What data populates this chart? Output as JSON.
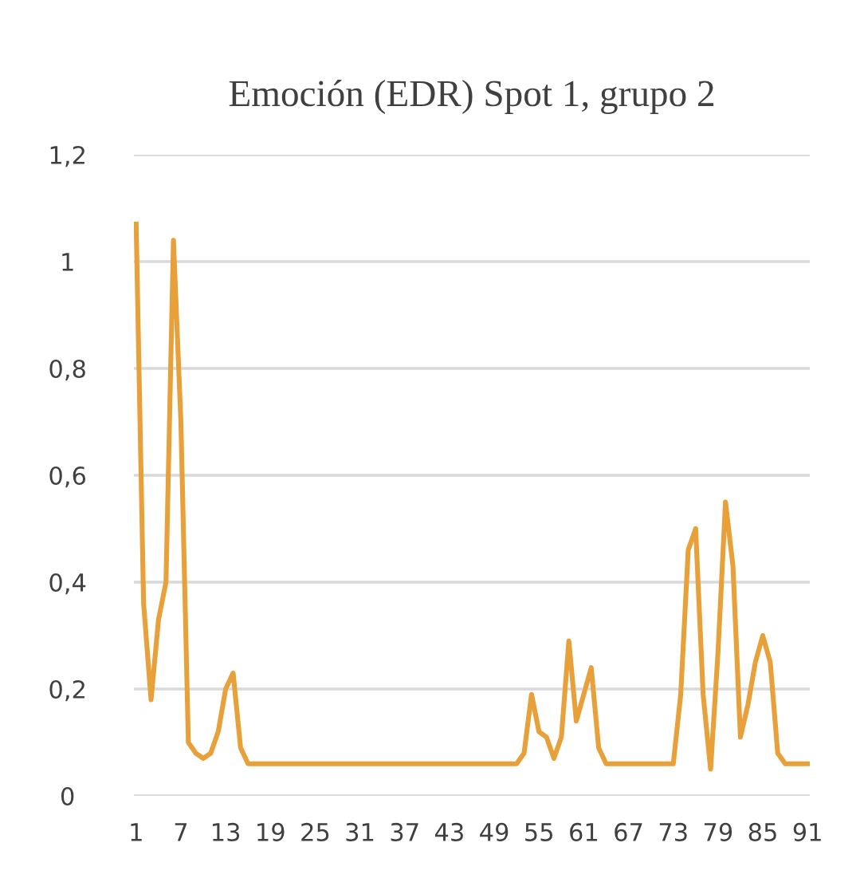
{
  "chart_data": {
    "type": "line",
    "title": "Emoción (EDR) Spot 1, grupo 2",
    "categories": [
      "1",
      null,
      null,
      null,
      null,
      null,
      "7",
      null,
      null,
      null,
      null,
      null,
      "13",
      null,
      null,
      null,
      null,
      null,
      "19",
      null,
      null,
      null,
      null,
      null,
      "25",
      null,
      null,
      null,
      null,
      null,
      "31",
      null,
      null,
      null,
      null,
      null,
      "37",
      null,
      null,
      null,
      null,
      null,
      "43",
      null,
      null,
      null,
      null,
      null,
      "49",
      null,
      null,
      null,
      null,
      null,
      "55",
      null,
      null,
      null,
      null,
      null,
      "61",
      null,
      null,
      null,
      null,
      null,
      "67",
      null,
      null,
      null,
      null,
      null,
      "73",
      null,
      null,
      null,
      null,
      null,
      "79",
      null,
      null,
      null,
      null,
      null,
      "85",
      null,
      null,
      null,
      null,
      null,
      "91"
    ],
    "series": [
      {
        "color": "#e8a03a",
        "values": [
          1.07,
          0.36,
          0.18,
          0.33,
          0.4,
          1.04,
          0.7,
          0.1,
          0.08,
          0.07,
          0.08,
          0.12,
          0.2,
          0.23,
          0.09,
          0.06,
          0.06,
          0.06,
          0.06,
          0.06,
          0.06,
          0.06,
          0.06,
          0.06,
          0.06,
          0.06,
          0.06,
          0.06,
          0.06,
          0.06,
          0.06,
          0.06,
          0.06,
          0.06,
          0.06,
          0.06,
          0.06,
          0.06,
          0.06,
          0.06,
          0.06,
          0.06,
          0.06,
          0.06,
          0.06,
          0.06,
          0.06,
          0.06,
          0.06,
          0.06,
          0.06,
          0.06,
          0.08,
          0.19,
          0.12,
          0.11,
          0.07,
          0.11,
          0.29,
          0.14,
          0.19,
          0.24,
          0.09,
          0.06,
          0.06,
          0.06,
          0.06,
          0.06,
          0.06,
          0.06,
          0.06,
          0.06,
          0.06,
          0.19,
          0.46,
          0.5,
          0.19,
          0.05,
          0.27,
          0.55,
          0.43,
          0.11,
          0.17,
          0.25,
          0.3,
          0.25,
          0.08,
          0.06,
          0.06,
          0.06,
          0.06
        ]
      }
    ],
    "ylim": [
      0,
      1.2
    ],
    "yticks": [
      0,
      {
        "value": 0.2,
        "label": "0,2"
      },
      {
        "value": 0.4,
        "label": "0,4"
      },
      {
        "value": 0.6,
        "label": "0,6"
      },
      {
        "value": 0.8,
        "label": "0,8"
      },
      1,
      {
        "value": 1.2,
        "label": "1,2"
      }
    ],
    "grid": "y",
    "legend": false,
    "marker": "none",
    "line_style": "solid"
  }
}
